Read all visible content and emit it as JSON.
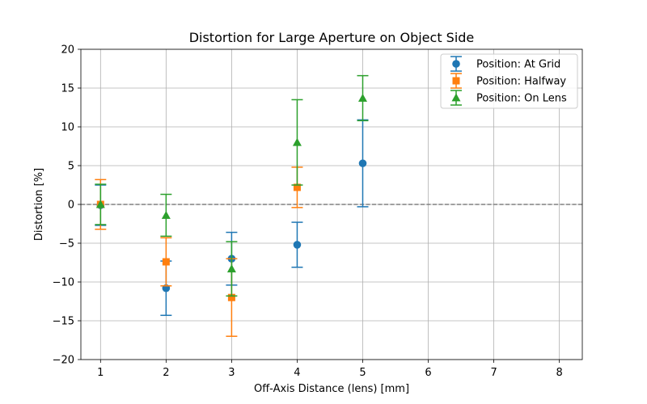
{
  "chart_data": {
    "type": "scatter",
    "title": "Distortion for Large Aperture on Object Side",
    "xlabel": "Off-Axis Distance (lens) [mm]",
    "ylabel": "Distortion [%]",
    "xlim": [
      0.7,
      8.35
    ],
    "ylim": [
      -20,
      20
    ],
    "xticks": [
      1,
      2,
      3,
      4,
      5,
      6,
      7,
      8
    ],
    "yticks": [
      -20,
      -15,
      -10,
      -5,
      0,
      5,
      10,
      15,
      20
    ],
    "ytick_labels": [
      "−20",
      "−15",
      "−10",
      "−5",
      "0",
      "5",
      "10",
      "15",
      "20"
    ],
    "grid": true,
    "reference_line": {
      "y": 0,
      "style": "dashed",
      "color": "#808080"
    },
    "legend_position": "upper right",
    "series": [
      {
        "name": "Position: At Grid",
        "color": "#1f77b4",
        "marker": "circle",
        "x": [
          1,
          2,
          3,
          4,
          5
        ],
        "y": [
          -0.1,
          -10.8,
          -7.0,
          -5.2,
          5.3
        ],
        "yerr": [
          2.6,
          3.5,
          3.4,
          2.9,
          5.6
        ]
      },
      {
        "name": "Position: Halfway",
        "color": "#ff7f0e",
        "marker": "square",
        "x": [
          1,
          2,
          3,
          4
        ],
        "y": [
          0.0,
          -7.4,
          -12.0,
          2.2
        ],
        "yerr": [
          3.2,
          3.1,
          5.0,
          2.6
        ]
      },
      {
        "name": "Position: On Lens",
        "color": "#2ca02c",
        "marker": "triangle",
        "x": [
          1,
          2,
          3,
          4,
          5
        ],
        "y": [
          0.0,
          -1.4,
          -8.3,
          8.0,
          13.7
        ],
        "yerr": [
          2.6,
          2.7,
          3.5,
          5.5,
          2.9
        ]
      }
    ]
  }
}
